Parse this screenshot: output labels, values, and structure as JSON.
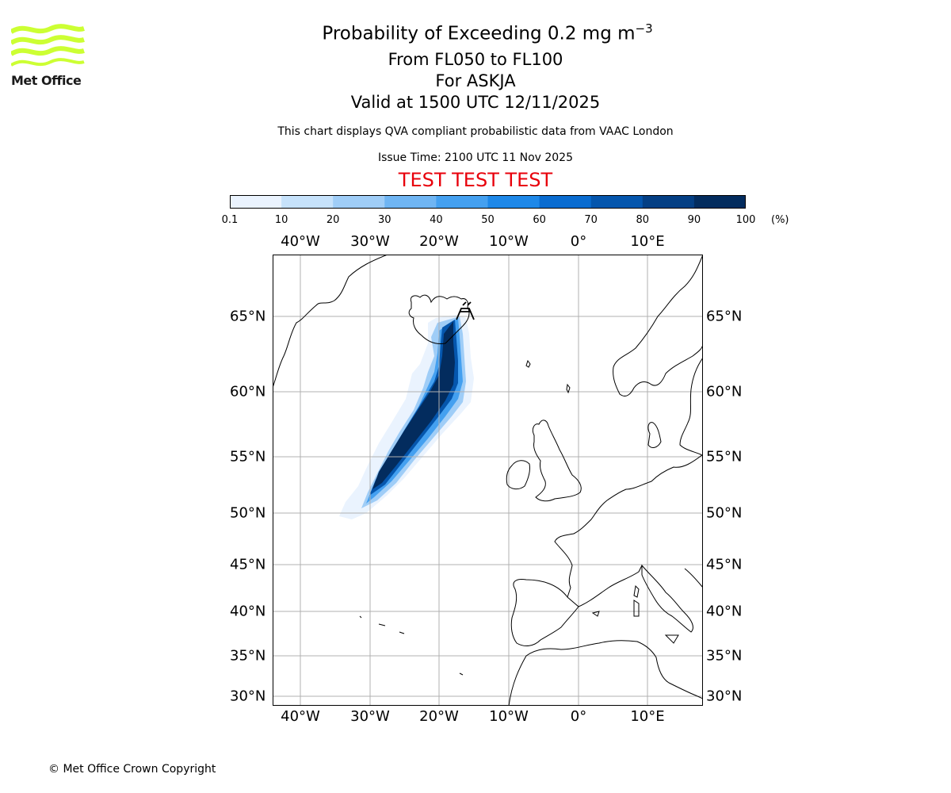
{
  "logo": {
    "text": "Met Office",
    "color": "#ccff33"
  },
  "title": {
    "main_prefix": "Probability of Exceeding 0.2 mg m",
    "main_superscript": "−3",
    "line2": "From FL050 to FL100",
    "line3": "For ASKJA",
    "line4": "Valid at 1500 UTC 12/11/2025"
  },
  "description": "This chart displays QVA compliant probabilistic data from VAAC London",
  "issue_time": "Issue Time: 2100 UTC 11 Nov 2025",
  "test_banner": "TEST TEST TEST",
  "colorbar": {
    "ticks": [
      "0.1",
      "10",
      "20",
      "30",
      "40",
      "50",
      "60",
      "70",
      "80",
      "90",
      "100"
    ],
    "unit": "(%)",
    "colors": [
      "#eaf3fe",
      "#c6e2fb",
      "#9fcdf7",
      "#6fb5f3",
      "#44a0f0",
      "#1e88e8",
      "#0a6cd0",
      "#0556ad",
      "#043f84",
      "#032c5e"
    ]
  },
  "map": {
    "longitude_labels": [
      "40°W",
      "30°W",
      "20°W",
      "10°W",
      "0°",
      "10°E"
    ],
    "latitude_labels": [
      "65°N",
      "60°N",
      "55°N",
      "50°N",
      "45°N",
      "40°N",
      "35°N",
      "30°N"
    ],
    "volcano": "ASKJA"
  },
  "copyright": "© Met Office Crown Copyright"
}
